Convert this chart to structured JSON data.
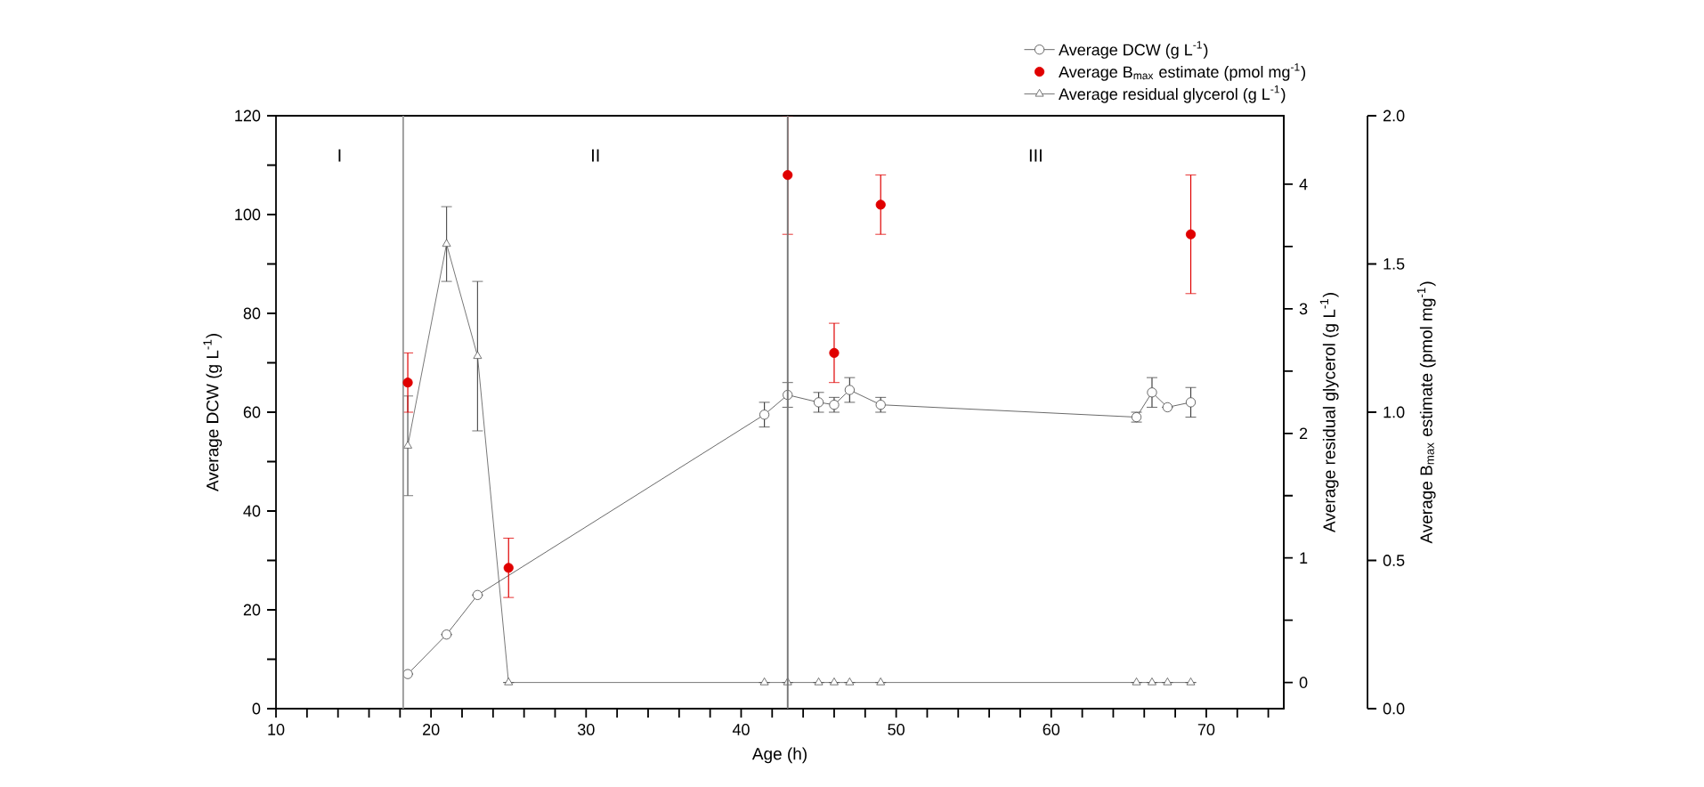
{
  "chart_data": {
    "type": "line",
    "xlabel": "Age (h)",
    "ylabel": "Average DCW (g L$^{-1}$)",
    "y2label": "Average residual glycerol (g L$^{-1}$)",
    "y3label": "Average B$_{max}$ estimate (pmol mg$^{-1}$)",
    "xlim": [
      10,
      75
    ],
    "ylim": [
      0,
      120
    ],
    "y2lim": [
      -0.21,
      4.55
    ],
    "y3lim": [
      0,
      2
    ],
    "xticks": [
      10,
      {
        "value": 12,
        "label": null
      },
      {
        "value": 14,
        "label": null
      },
      {
        "value": 16,
        "label": null
      },
      {
        "value": 18,
        "label": null
      },
      20,
      {
        "value": 22,
        "label": null
      },
      {
        "value": 24,
        "label": null
      },
      {
        "value": 26,
        "label": null
      },
      {
        "value": 28,
        "label": null
      },
      30,
      {
        "value": 32,
        "label": null
      },
      {
        "value": 34,
        "label": null
      },
      {
        "value": 36,
        "label": null
      },
      {
        "value": 38,
        "label": null
      },
      40,
      {
        "value": 42,
        "label": null
      },
      {
        "value": 44,
        "label": null
      },
      {
        "value": 46,
        "label": null
      },
      {
        "value": 48,
        "label": null
      },
      50,
      {
        "value": 52,
        "label": null
      },
      {
        "value": 54,
        "label": null
      },
      {
        "value": 56,
        "label": null
      },
      {
        "value": 58,
        "label": null
      },
      60,
      {
        "value": 62,
        "label": null
      },
      {
        "value": 64,
        "label": null
      },
      {
        "value": 66,
        "label": null
      },
      {
        "value": 68,
        "label": null
      },
      70,
      {
        "value": 72,
        "label": null
      },
      {
        "value": 74,
        "label": null
      }
    ],
    "yticks": [
      0,
      {
        "value": 10,
        "label": null
      },
      20,
      {
        "value": 30,
        "label": null
      },
      40,
      {
        "value": 50,
        "label": null
      },
      60,
      {
        "value": 70,
        "label": null
      },
      80,
      {
        "value": 90,
        "label": null
      },
      100,
      {
        "value": 110,
        "label": null
      },
      120
    ],
    "y2ticks": [
      0,
      {
        "value": 0.5,
        "label": null
      },
      1,
      {
        "value": 1.5,
        "label": null
      },
      2,
      {
        "value": 2.5,
        "label": null
      },
      3,
      {
        "value": 3.5,
        "label": null
      },
      4
    ],
    "y3ticks": [
      {
        "value": 0,
        "label": "0.0"
      },
      0.5,
      {
        "value": 1,
        "label": "1.0"
      },
      1.5,
      {
        "value": 2,
        "label": "2.0"
      }
    ],
    "grid": false,
    "legend": "top right",
    "ref_lines": [
      {
        "axis": "x",
        "value": 18.2,
        "color": "#999999"
      },
      {
        "axis": "x",
        "value": 43,
        "color": "#777777"
      }
    ],
    "annotations": [
      "I",
      "II",
      "III"
    ],
    "series": [
      {
        "name": "Average DCW (g L$^{-1}$)",
        "axis": "y",
        "color": "#444444",
        "marker": "circle",
        "line_style": "solid",
        "x": [
          18.5,
          21,
          23,
          41.5,
          43,
          45,
          46,
          47,
          49,
          65.5,
          66.5,
          67.5,
          69
        ],
        "values": [
          7,
          15,
          23,
          59.5,
          63.5,
          62,
          61.5,
          64.5,
          61.5,
          59,
          64,
          61,
          62
        ],
        "errors": [
          null,
          null,
          null,
          2.5,
          2.5,
          2,
          1.5,
          2.5,
          1.5,
          1,
          3,
          null,
          3
        ]
      },
      {
        "name": "Average B$_{max}$ estimate (pmol mg$^{-1}$)",
        "type": "scatter",
        "axis": "y3",
        "color": "#e00000",
        "marker": "circle",
        "x": [
          18.5,
          25,
          43,
          46,
          49,
          69
        ],
        "values": [
          1.1,
          0.475,
          1.8,
          1.2,
          1.7,
          1.6
        ],
        "errors": [
          0.1,
          0.1,
          0.2,
          0.1,
          0.1,
          0.2
        ]
      },
      {
        "name": "Average residual glycerol (g L$^{-1}$)",
        "axis": "y2",
        "color": "#555555",
        "marker": "triangle",
        "line_style": "solid",
        "x": [
          18.5,
          21,
          23,
          25,
          41.5,
          43,
          45,
          46,
          47,
          49,
          65.5,
          66.5,
          67.5,
          69
        ],
        "values": [
          1.9,
          3.52,
          2.62,
          0,
          0,
          0,
          0,
          0,
          0,
          0,
          0,
          0,
          0,
          0
        ],
        "errors": [
          0.4,
          0.3,
          0.6,
          null,
          null,
          null,
          null,
          null,
          null,
          null,
          null,
          null,
          null,
          null
        ]
      }
    ]
  }
}
